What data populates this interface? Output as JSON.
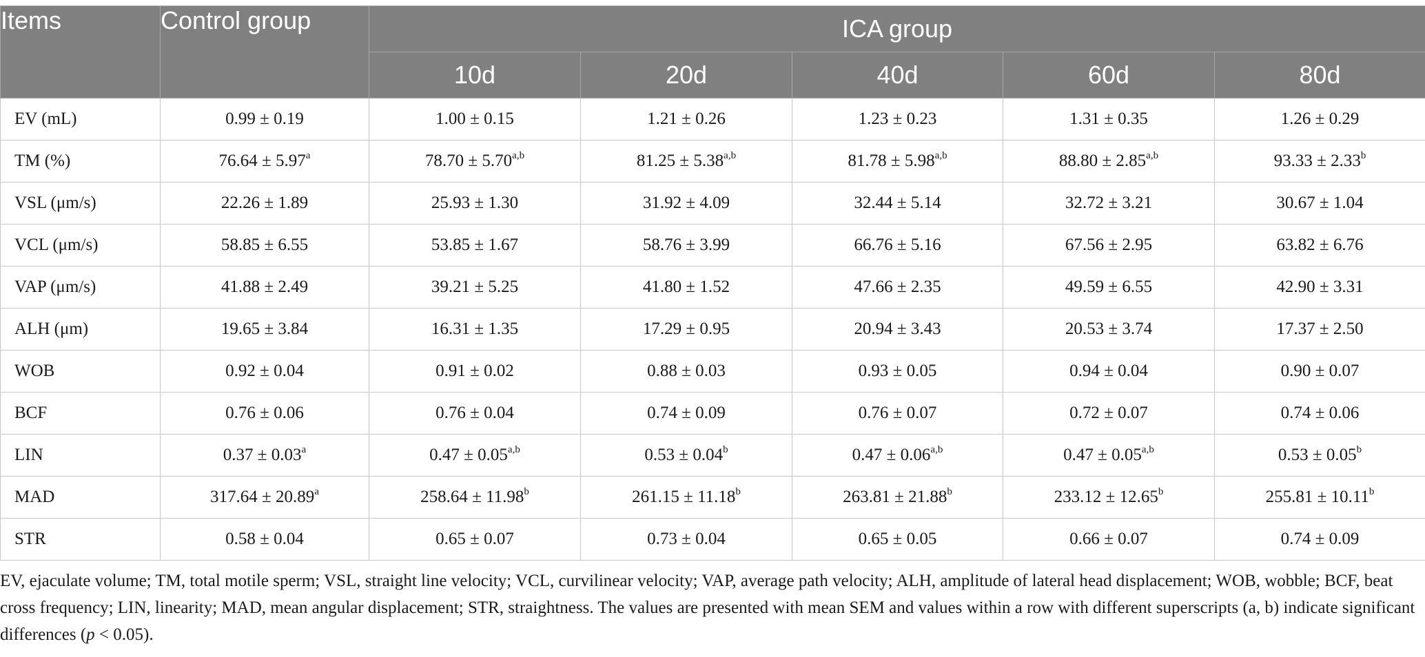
{
  "table": {
    "header": {
      "items": "Items",
      "control": "Control group",
      "ica": "ICA group",
      "days": [
        "10d",
        "20d",
        "40d",
        "60d",
        "80d"
      ]
    },
    "rows": [
      {
        "label": "EV (mL)",
        "cells": [
          {
            "v": "0.99 ± 0.19",
            "s": ""
          },
          {
            "v": "1.00 ± 0.15",
            "s": ""
          },
          {
            "v": "1.21 ± 0.26",
            "s": ""
          },
          {
            "v": "1.23 ± 0.23",
            "s": ""
          },
          {
            "v": "1.31 ± 0.35",
            "s": ""
          },
          {
            "v": "1.26 ± 0.29",
            "s": ""
          }
        ]
      },
      {
        "label": "TM (%)",
        "cells": [
          {
            "v": "76.64 ± 5.97",
            "s": "a"
          },
          {
            "v": "78.70 ± 5.70",
            "s": "a,b"
          },
          {
            "v": "81.25 ± 5.38",
            "s": "a,b"
          },
          {
            "v": "81.78 ± 5.98",
            "s": "a,b"
          },
          {
            "v": "88.80 ± 2.85",
            "s": "a,b"
          },
          {
            "v": "93.33 ± 2.33",
            "s": "b"
          }
        ]
      },
      {
        "label": "VSL (μm/s)",
        "cells": [
          {
            "v": "22.26 ± 1.89",
            "s": ""
          },
          {
            "v": "25.93 ± 1.30",
            "s": ""
          },
          {
            "v": "31.92 ± 4.09",
            "s": ""
          },
          {
            "v": "32.44 ± 5.14",
            "s": ""
          },
          {
            "v": "32.72 ± 3.21",
            "s": ""
          },
          {
            "v": "30.67 ± 1.04",
            "s": ""
          }
        ]
      },
      {
        "label": "VCL (μm/s)",
        "cells": [
          {
            "v": "58.85 ± 6.55",
            "s": ""
          },
          {
            "v": "53.85 ± 1.67",
            "s": ""
          },
          {
            "v": "58.76 ± 3.99",
            "s": ""
          },
          {
            "v": "66.76 ± 5.16",
            "s": ""
          },
          {
            "v": "67.56 ± 2.95",
            "s": ""
          },
          {
            "v": "63.82 ± 6.76",
            "s": ""
          }
        ]
      },
      {
        "label": "VAP (μm/s)",
        "cells": [
          {
            "v": "41.88 ± 2.49",
            "s": ""
          },
          {
            "v": "39.21 ± 5.25",
            "s": ""
          },
          {
            "v": "41.80 ± 1.52",
            "s": ""
          },
          {
            "v": "47.66 ± 2.35",
            "s": ""
          },
          {
            "v": "49.59 ± 6.55",
            "s": ""
          },
          {
            "v": "42.90 ± 3.31",
            "s": ""
          }
        ]
      },
      {
        "label": "ALH (μm)",
        "cells": [
          {
            "v": "19.65 ± 3.84",
            "s": ""
          },
          {
            "v": "16.31 ± 1.35",
            "s": ""
          },
          {
            "v": "17.29 ± 0.95",
            "s": ""
          },
          {
            "v": "20.94 ± 3.43",
            "s": ""
          },
          {
            "v": "20.53 ± 3.74",
            "s": ""
          },
          {
            "v": "17.37 ± 2.50",
            "s": ""
          }
        ]
      },
      {
        "label": "WOB",
        "cells": [
          {
            "v": "0.92 ± 0.04",
            "s": ""
          },
          {
            "v": "0.91 ± 0.02",
            "s": ""
          },
          {
            "v": "0.88 ± 0.03",
            "s": ""
          },
          {
            "v": "0.93 ± 0.05",
            "s": ""
          },
          {
            "v": "0.94 ± 0.04",
            "s": ""
          },
          {
            "v": "0.90 ± 0.07",
            "s": ""
          }
        ]
      },
      {
        "label": "BCF",
        "cells": [
          {
            "v": "0.76 ± 0.06",
            "s": ""
          },
          {
            "v": "0.76 ± 0.04",
            "s": ""
          },
          {
            "v": "0.74 ± 0.09",
            "s": ""
          },
          {
            "v": "0.76 ± 0.07",
            "s": ""
          },
          {
            "v": "0.72 ± 0.07",
            "s": ""
          },
          {
            "v": "0.74 ± 0.06",
            "s": ""
          }
        ]
      },
      {
        "label": "LIN",
        "cells": [
          {
            "v": "0.37 ± 0.03",
            "s": "a"
          },
          {
            "v": "0.47 ± 0.05",
            "s": "a,b"
          },
          {
            "v": "0.53 ± 0.04",
            "s": "b"
          },
          {
            "v": "0.47 ± 0.06",
            "s": "a,b"
          },
          {
            "v": "0.47 ± 0.05",
            "s": "a,b"
          },
          {
            "v": "0.53 ± 0.05",
            "s": "b"
          }
        ]
      },
      {
        "label": "MAD",
        "cells": [
          {
            "v": "317.64 ± 20.89",
            "s": "a"
          },
          {
            "v": "258.64 ± 11.98",
            "s": "b"
          },
          {
            "v": "261.15 ± 11.18",
            "s": "b"
          },
          {
            "v": "263.81 ± 21.88",
            "s": "b"
          },
          {
            "v": "233.12 ± 12.65",
            "s": "b"
          },
          {
            "v": "255.81 ± 10.11",
            "s": "b"
          }
        ]
      },
      {
        "label": "STR",
        "cells": [
          {
            "v": "0.58 ± 0.04",
            "s": ""
          },
          {
            "v": "0.65 ± 0.07",
            "s": ""
          },
          {
            "v": "0.73 ± 0.04",
            "s": ""
          },
          {
            "v": "0.65 ± 0.05",
            "s": ""
          },
          {
            "v": "0.66 ± 0.07",
            "s": ""
          },
          {
            "v": "0.74 ± 0.09",
            "s": ""
          }
        ]
      }
    ]
  },
  "footnote": {
    "text_before_p": "EV, ejaculate volume; TM, total motile sperm; VSL, straight line velocity; VCL, curvilinear velocity; VAP, average path velocity; ALH, amplitude of lateral head displacement; WOB, wobble; BCF, beat cross frequency; LIN, linearity; MAD, mean angular displacement; STR, straightness. The values are presented with mean SEM and values within a row with different superscripts (a, b) indicate significant differences (",
    "p_symbol": "p",
    "text_after_p": " < 0.05)."
  },
  "colors": {
    "header_bg": "#808080",
    "header_text": "#ffffff",
    "grid_line": "#c8c8c8"
  }
}
